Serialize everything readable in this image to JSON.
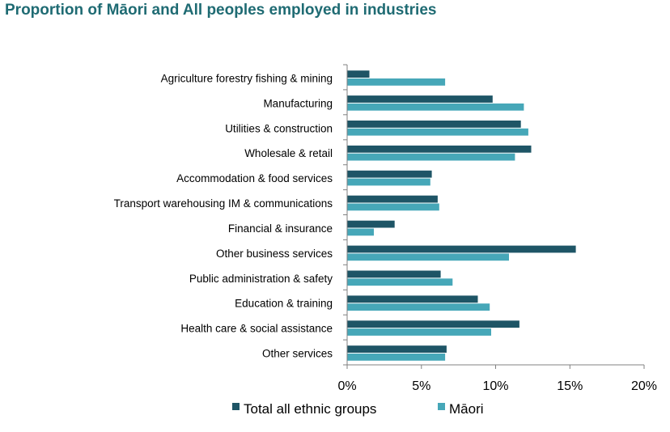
{
  "title": "Proportion of Māori and All peoples employed in industries",
  "colors": {
    "total": "#1e5566",
    "maori": "#46a7b8",
    "title": "#1f6b73",
    "axis": "#808080"
  },
  "chart_data": {
    "type": "bar",
    "orientation": "horizontal",
    "categories": [
      "Agriculture forestry fishing & mining",
      "Manufacturing",
      "Utilities & construction",
      "Wholesale & retail",
      "Accommodation & food services",
      "Transport warehousing IM & communications",
      "Financial & insurance",
      "Other business services",
      "Public administration & safety",
      "Education & training",
      "Health care & social assistance",
      "Other services"
    ],
    "series": [
      {
        "name": "Total all ethnic groups",
        "values": [
          1.5,
          9.8,
          11.7,
          12.4,
          5.7,
          6.1,
          3.2,
          15.4,
          6.3,
          8.8,
          11.6,
          6.7
        ]
      },
      {
        "name": "Māori",
        "values": [
          6.6,
          11.9,
          12.2,
          11.3,
          5.6,
          6.2,
          1.8,
          10.9,
          7.1,
          9.6,
          9.7,
          6.6
        ]
      }
    ],
    "xlim": [
      0,
      20
    ],
    "xticks": [
      "0%",
      "5%",
      "10%",
      "15%",
      "20%"
    ],
    "xtick_values": [
      0,
      5,
      10,
      15,
      20
    ],
    "legend_position": "bottom",
    "grid": false
  }
}
